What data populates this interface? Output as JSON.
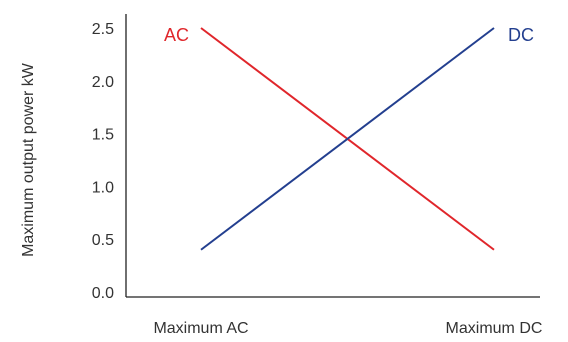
{
  "chart_data": {
    "type": "line",
    "title": "",
    "ylabel": "Maximum output power kW",
    "xlabel": "",
    "categories": [
      "Maximum AC",
      "Maximum DC"
    ],
    "ylim": [
      0.0,
      2.5
    ],
    "y_ticks": [
      "0.0",
      "0.5",
      "1.0",
      "1.5",
      "2.0",
      "2.5"
    ],
    "grid": false,
    "series": [
      {
        "name": "AC",
        "color": "#e0262b",
        "values": [
          2.5,
          0.4
        ]
      },
      {
        "name": "DC",
        "color": "#233f8f",
        "values": [
          0.4,
          2.5
        ]
      }
    ]
  }
}
